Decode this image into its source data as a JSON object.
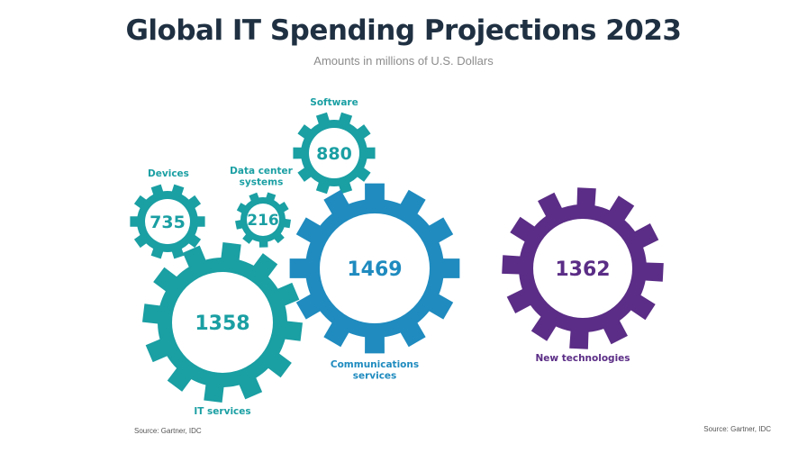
{
  "header": {
    "title": "Global IT Spending Projections 2023",
    "subtitle": "Amounts in millions of U.S. Dollars"
  },
  "footer": {
    "source_left": "Source: Gartner, IDC",
    "source_right": "Source:  Gartner, IDC"
  },
  "colors": {
    "teal": "#1a9fa3",
    "blue": "#1f8bbf",
    "purple": "#5b2d86",
    "title": "#1f3042"
  },
  "chart_data": {
    "type": "gear-infographic",
    "title": "Global IT Spending Projections 2023",
    "subtitle": "Amounts in millions of U.S. Dollars",
    "unit": "millions of U.S. Dollars",
    "categories": [
      "Devices",
      "Data center systems",
      "Software",
      "IT services",
      "Communications services",
      "New technologies"
    ],
    "values": [
      735,
      216,
      880,
      1358,
      1469,
      1362
    ],
    "items": [
      {
        "key": "devices",
        "label_lines": [
          "Devices"
        ],
        "value": "735",
        "color": "#1a9fa3"
      },
      {
        "key": "data-center-systems",
        "label_lines": [
          "Data center",
          "systems"
        ],
        "value": "216",
        "color": "#1a9fa3"
      },
      {
        "key": "software",
        "label_lines": [
          "Software"
        ],
        "value": "880",
        "color": "#1a9fa3"
      },
      {
        "key": "it-services",
        "label_lines": [
          "IT services"
        ],
        "value": "1358",
        "color": "#1a9fa3"
      },
      {
        "key": "communications-services",
        "label_lines": [
          "Communications",
          "services"
        ],
        "value": "1469",
        "color": "#1f8bbf"
      },
      {
        "key": "new-technologies",
        "label_lines": [
          "New technologies"
        ],
        "value": "1362",
        "color": "#5b2d86"
      }
    ]
  }
}
